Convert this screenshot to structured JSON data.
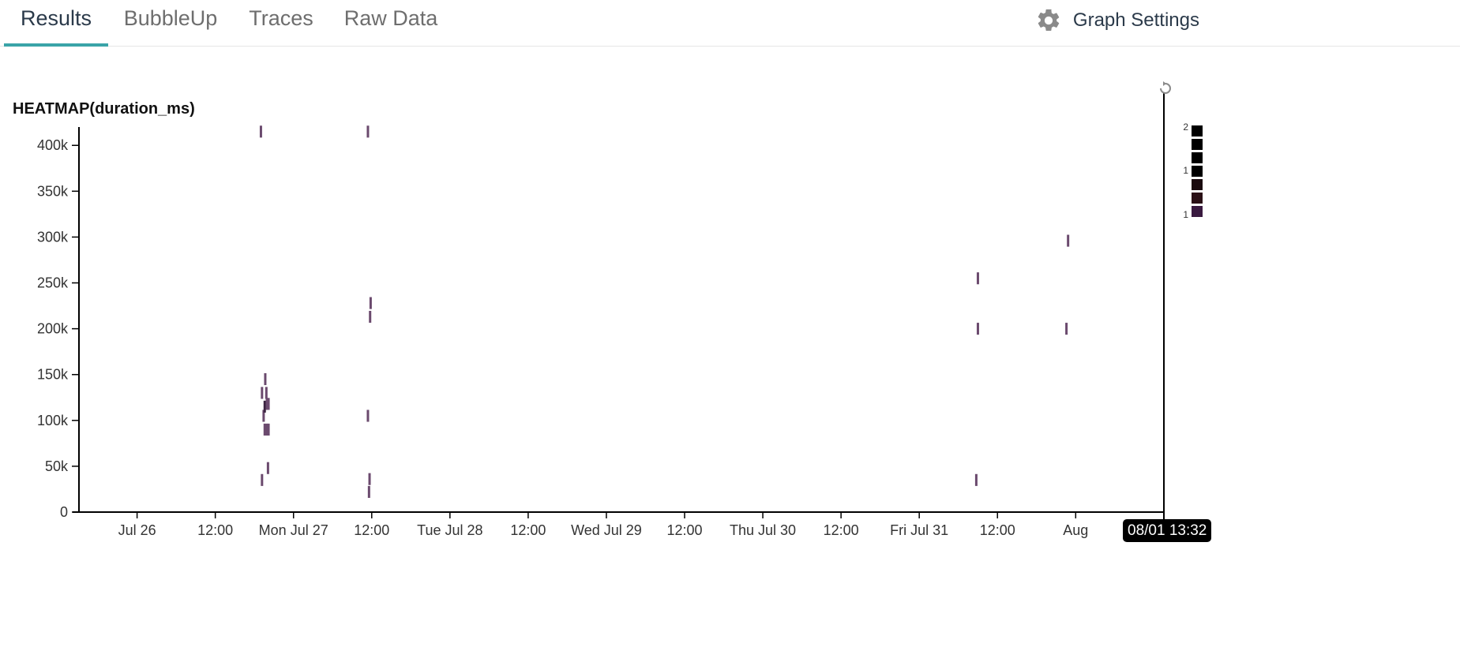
{
  "tabs": [
    {
      "label": "Results",
      "active": true
    },
    {
      "label": "BubbleUp",
      "active": false
    },
    {
      "label": "Traces",
      "active": false
    },
    {
      "label": "Raw Data",
      "active": false
    }
  ],
  "graph_settings": {
    "label": "Graph Settings",
    "icon": "gear-icon"
  },
  "colors": {
    "accent": "#3aa4a8",
    "cell": "#6b4a6e",
    "cell_dark": "#3a2340"
  },
  "chart_data": {
    "type": "heatmap",
    "title": "HEATMAP(duration_ms)",
    "ylim": [
      0,
      420000
    ],
    "xlim": [
      "2020-07-25T15:05",
      "2020-08-01T13:32"
    ],
    "y_ticks": [
      {
        "v": 0,
        "label": "0"
      },
      {
        "v": 50000,
        "label": "50k"
      },
      {
        "v": 100000,
        "label": "100k"
      },
      {
        "v": 150000,
        "label": "150k"
      },
      {
        "v": 200000,
        "label": "200k"
      },
      {
        "v": 250000,
        "label": "250k"
      },
      {
        "v": 300000,
        "label": "300k"
      },
      {
        "v": 350000,
        "label": "350k"
      },
      {
        "v": 400000,
        "label": "400k"
      }
    ],
    "x_ticks": [
      {
        "t": "2020-07-26T00:00",
        "label": "Jul 26"
      },
      {
        "t": "2020-07-26T12:00",
        "label": "12:00"
      },
      {
        "t": "2020-07-27T00:00",
        "label": "Mon Jul 27"
      },
      {
        "t": "2020-07-27T12:00",
        "label": "12:00"
      },
      {
        "t": "2020-07-28T00:00",
        "label": "Tue Jul 28"
      },
      {
        "t": "2020-07-28T12:00",
        "label": "12:00"
      },
      {
        "t": "2020-07-29T00:00",
        "label": "Wed Jul 29"
      },
      {
        "t": "2020-07-29T12:00",
        "label": "12:00"
      },
      {
        "t": "2020-07-30T00:00",
        "label": "Thu Jul 30"
      },
      {
        "t": "2020-07-30T12:00",
        "label": "12:00"
      },
      {
        "t": "2020-07-31T00:00",
        "label": "Fri Jul 31"
      },
      {
        "t": "2020-07-31T12:00",
        "label": "12:00"
      },
      {
        "t": "2020-08-01T00:00",
        "label": "Aug"
      }
    ],
    "current_time_label": "08/01 13:32",
    "cells": [
      {
        "t": "2020-07-26T19:00",
        "y": 415000,
        "count": 1
      },
      {
        "t": "2020-07-26T19:10",
        "y": 35000,
        "count": 1
      },
      {
        "t": "2020-07-26T19:10",
        "y": 130000,
        "count": 1
      },
      {
        "t": "2020-07-26T19:25",
        "y": 105000,
        "count": 1
      },
      {
        "t": "2020-07-26T19:35",
        "y": 90000,
        "count": 1
      },
      {
        "t": "2020-07-26T19:35",
        "y": 115000,
        "count": 2
      },
      {
        "t": "2020-07-26T19:40",
        "y": 145000,
        "count": 1
      },
      {
        "t": "2020-07-26T19:50",
        "y": 130000,
        "count": 1
      },
      {
        "t": "2020-07-26T19:55",
        "y": 90000,
        "count": 1
      },
      {
        "t": "2020-07-26T19:55",
        "y": 118000,
        "count": 1
      },
      {
        "t": "2020-07-26T20:05",
        "y": 48000,
        "count": 1
      },
      {
        "t": "2020-07-26T20:10",
        "y": 90000,
        "count": 1
      },
      {
        "t": "2020-07-26T20:10",
        "y": 118000,
        "count": 1
      },
      {
        "t": "2020-07-27T11:25",
        "y": 415000,
        "count": 1
      },
      {
        "t": "2020-07-27T11:25",
        "y": 105000,
        "count": 1
      },
      {
        "t": "2020-07-27T11:35",
        "y": 22000,
        "count": 1
      },
      {
        "t": "2020-07-27T11:40",
        "y": 36000,
        "count": 1
      },
      {
        "t": "2020-07-27T11:45",
        "y": 213000,
        "count": 1
      },
      {
        "t": "2020-07-27T11:50",
        "y": 228000,
        "count": 1
      },
      {
        "t": "2020-07-31T08:45",
        "y": 35000,
        "count": 1
      },
      {
        "t": "2020-07-31T09:00",
        "y": 200000,
        "count": 1
      },
      {
        "t": "2020-07-31T09:00",
        "y": 255000,
        "count": 1
      },
      {
        "t": "2020-07-31T22:35",
        "y": 200000,
        "count": 1
      },
      {
        "t": "2020-07-31T22:50",
        "y": 296000,
        "count": 1
      }
    ],
    "legend": {
      "labels": [
        "2",
        "1",
        "1"
      ],
      "swatches": [
        "#000000",
        "#000000",
        "#000000",
        "#000000",
        "#1a0a0e",
        "#2a1016",
        "#3a1a40"
      ]
    }
  }
}
